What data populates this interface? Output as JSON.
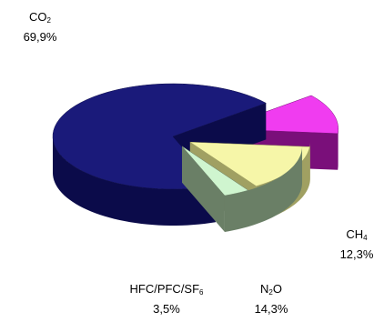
{
  "chart_data": {
    "type": "pie",
    "style": "exploded-3d",
    "slices": [
      {
        "formula_main": "CO",
        "formula_sub": "2",
        "formula_tail": "",
        "value_text": "69,9%",
        "value": 69.9,
        "top_color": "#1a1a7a",
        "side_color": "#0b0b4a"
      },
      {
        "formula_main": "CH",
        "formula_sub": "4",
        "formula_tail": "",
        "value_text": "12,3%",
        "value": 12.3,
        "top_color": "#f03cf0",
        "side_color": "#7a0f7a"
      },
      {
        "formula_main": "N",
        "formula_sub": "2",
        "formula_tail": "O",
        "value_text": "14,3%",
        "value": 14.3,
        "top_color": "#f6f6a8",
        "side_color": "#a0a062"
      },
      {
        "formula_main": "HFC/PFC/SF",
        "formula_sub": "6",
        "formula_tail": "",
        "value_text": "3,5%",
        "value": 3.5,
        "top_color": "#cff5cf",
        "side_color": "#6a7f66"
      }
    ]
  }
}
